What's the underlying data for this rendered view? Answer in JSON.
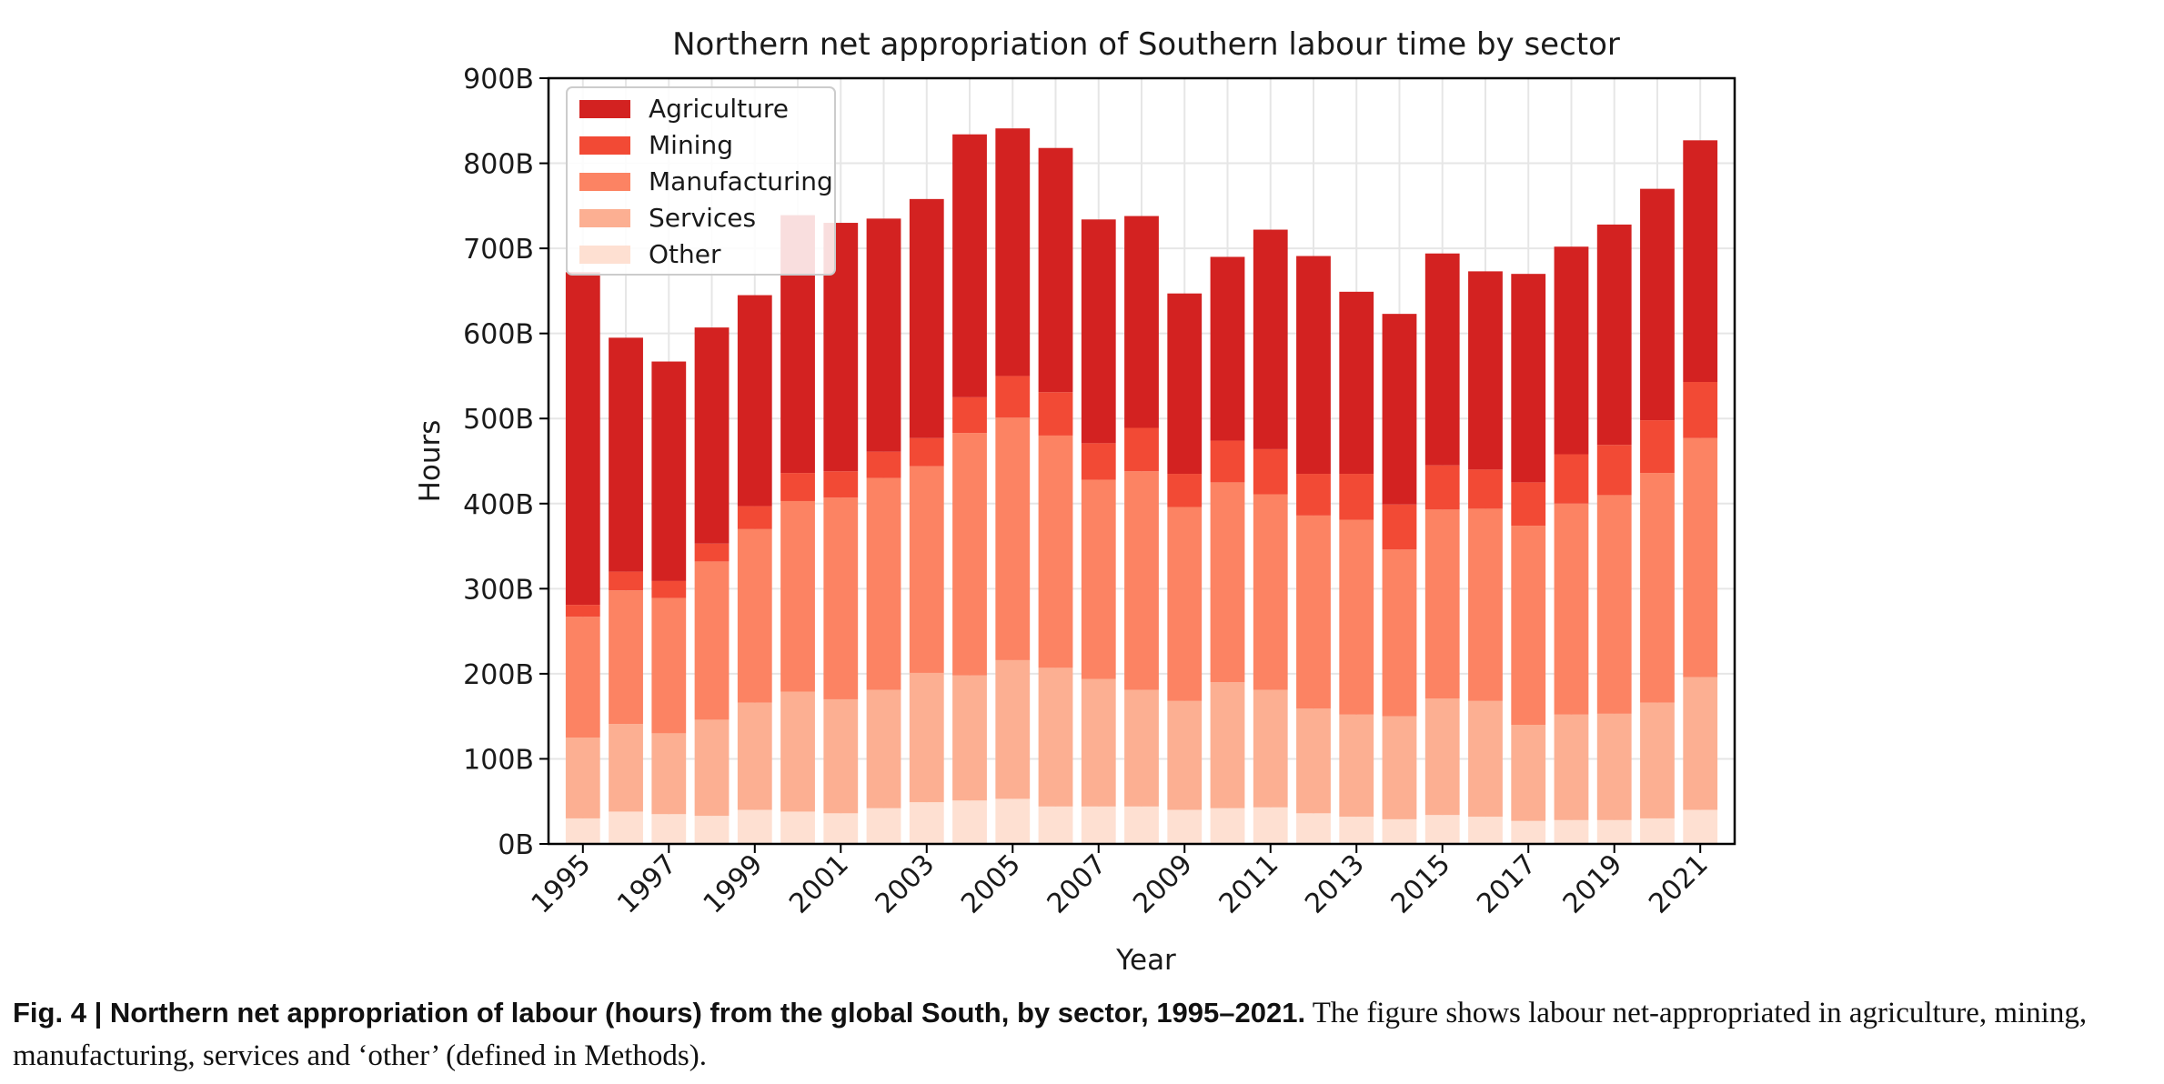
{
  "chart_data": {
    "type": "bar",
    "stacked": true,
    "title": "Northern net appropriation of Southern labour time by sector",
    "xlabel": "Year",
    "ylabel": "Hours",
    "ylim": [
      0,
      900
    ],
    "y_unit_suffix": "B",
    "yticks": [
      "0B",
      "100B",
      "200B",
      "300B",
      "400B",
      "500B",
      "600B",
      "700B",
      "800B",
      "900B"
    ],
    "xtick_labels": [
      "1995",
      "1997",
      "1999",
      "2001",
      "2003",
      "2005",
      "2007",
      "2009",
      "2011",
      "2013",
      "2015",
      "2017",
      "2019",
      "2021"
    ],
    "grid": true,
    "legend_position": "top-left",
    "categories": [
      "1995",
      "1996",
      "1997",
      "1998",
      "1999",
      "2000",
      "2001",
      "2002",
      "2003",
      "2004",
      "2005",
      "2006",
      "2007",
      "2008",
      "2009",
      "2010",
      "2011",
      "2012",
      "2013",
      "2014",
      "2015",
      "2016",
      "2017",
      "2018",
      "2019",
      "2020",
      "2021"
    ],
    "series": [
      {
        "name": "Other",
        "color": "#fee0d2",
        "values": [
          30,
          38,
          35,
          33,
          40,
          38,
          36,
          42,
          49,
          51,
          53,
          44,
          44,
          44,
          40,
          42,
          43,
          36,
          32,
          29,
          34,
          32,
          27,
          28,
          28,
          30,
          40
        ]
      },
      {
        "name": "Services",
        "color": "#fcaf92",
        "values": [
          95,
          103,
          95,
          113,
          126,
          141,
          134,
          139,
          152,
          147,
          163,
          163,
          150,
          137,
          128,
          148,
          138,
          123,
          120,
          121,
          137,
          136,
          113,
          124,
          125,
          136,
          156
        ]
      },
      {
        "name": "Manufacturing",
        "color": "#fc8363",
        "values": [
          142,
          157,
          159,
          186,
          204,
          224,
          237,
          249,
          243,
          285,
          285,
          273,
          234,
          257,
          228,
          235,
          230,
          227,
          229,
          196,
          222,
          226,
          234,
          248,
          257,
          270,
          281
        ]
      },
      {
        "name": "Mining",
        "color": "#f24a35",
        "values": [
          14,
          22,
          20,
          21,
          27,
          33,
          31,
          31,
          33,
          42,
          49,
          51,
          43,
          51,
          39,
          49,
          53,
          49,
          54,
          53,
          52,
          46,
          51,
          58,
          59,
          62,
          66
        ]
      },
      {
        "name": "Agriculture",
        "color": "#d32221",
        "values": [
          391,
          275,
          258,
          254,
          248,
          303,
          292,
          274,
          281,
          309,
          291,
          287,
          263,
          249,
          212,
          216,
          258,
          256,
          214,
          224,
          249,
          233,
          245,
          244,
          259,
          272,
          284
        ]
      }
    ]
  },
  "caption": {
    "label": "Fig. 4 | Northern net appropriation of labour (hours) from the global South, by sector, 1995–2021.",
    "text": " The figure shows labour net-appropriated in agriculture, mining, manufacturing, services and ‘other’ (defined in Methods)."
  }
}
